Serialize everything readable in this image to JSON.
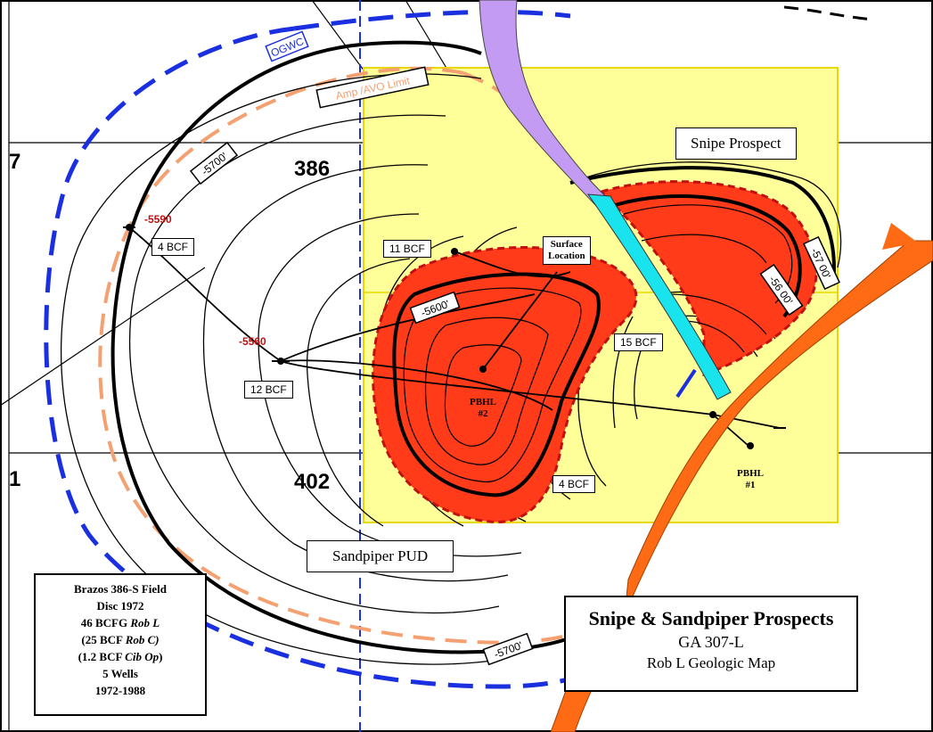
{
  "title": {
    "line1": "Snipe & Sandpiper Prospects",
    "line2": "GA 307-L",
    "line3": "Rob L Geologic Map"
  },
  "field_info": {
    "line1": "Brazos 386-S Field",
    "line2": "Disc 1972",
    "line3_a": "46 BCFG ",
    "line3_b": "Rob L",
    "line4_a": "(25 BCF ",
    "line4_b": "Rob C)",
    "line5_a": "(1.2 BCF ",
    "line5_b": "Cib Op",
    "line5_c": ")",
    "line6": "5 Wells",
    "line7": "1972-1988"
  },
  "prospects": {
    "snipe": "Snipe Prospect",
    "sandpiper": "Sandpiper PUD"
  },
  "blocks": {
    "b7": "7",
    "b386": "386",
    "b1": "1",
    "b402": "402"
  },
  "contacts": {
    "ogwc": "OGWC",
    "amp_avo": "Amp /AVO Limit"
  },
  "contours": {
    "c5700_nw": "-5700'",
    "c5700_s": "-5700'",
    "c5700_ne": "-57 00'",
    "c5600_ne": "-56 00'",
    "c5600_center": "-5600'"
  },
  "reserves": {
    "well_4bcf_nw": "4 BCF",
    "well_11bcf": "11 BCF",
    "well_12bcf": "12 BCF",
    "well_15bcf": "15 BCF",
    "well_4bcf_s": "4 BCF"
  },
  "wells": {
    "surface_line1": "Surface",
    "surface_line2": "Location",
    "pbhl2_line1": "PBHL",
    "pbhl2_line2": "#2",
    "pbhl1_line1": "PBHL",
    "pbhl1_line2": "#1"
  },
  "colors": {
    "ogwc": "#1a2fe0",
    "amp_avo": "#f4a070",
    "prospect_fill": "#ffff99",
    "reservoir": "#ff3b1a",
    "fault_orange": "#ff6a14",
    "fault_cyan": "#19e4ee",
    "fault_purple": "#c49bf2"
  }
}
